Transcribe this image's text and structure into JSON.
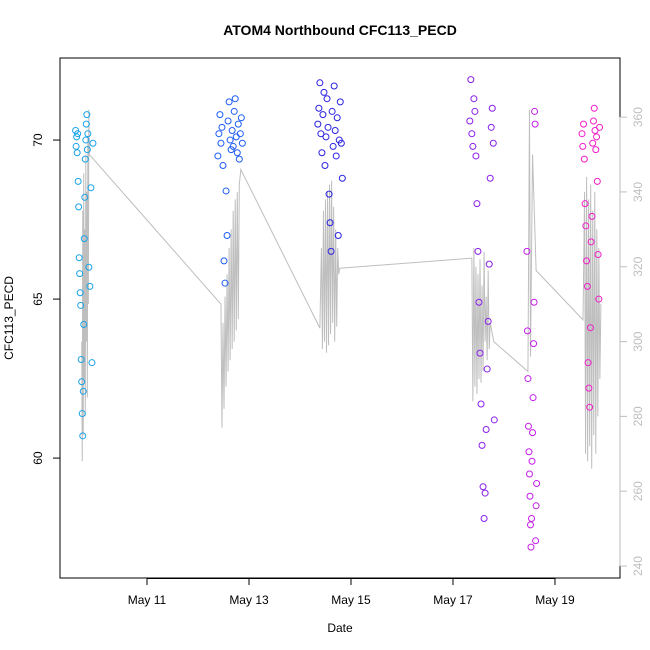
{
  "chart_data": {
    "type": "scatter",
    "title": "ATOM4 Northbound CFC113_PECD",
    "x_label": "Date",
    "y_label": "CFC113_PECD",
    "xlim": [
      9.294,
      20.275
    ],
    "xticks": [
      {
        "value": 11,
        "label": "May 11"
      },
      {
        "value": 13,
        "label": "May 13"
      },
      {
        "value": 15,
        "label": "May 15"
      },
      {
        "value": 17,
        "label": "May 17"
      },
      {
        "value": 19,
        "label": "May 19"
      }
    ],
    "ylim": [
      56.23,
      72.58
    ],
    "yticks": [
      60,
      65,
      70
    ],
    "y2lim": [
      236.8,
      375.8
    ],
    "y2ticks": [
      240,
      260,
      280,
      300,
      320,
      340,
      360
    ],
    "y2_color": "#bebebe",
    "series": [
      {
        "type": "line",
        "axis": "y2",
        "color": "#bebebe",
        "x": [
          9.72,
          9.73,
          9.74,
          9.75,
          9.76,
          9.77,
          9.78,
          9.79,
          9.8,
          9.81,
          9.82,
          9.83,
          9.84,
          9.85,
          9.86,
          9.87,
          12.45,
          12.47,
          12.49,
          12.51,
          12.53,
          12.55,
          12.57,
          12.59,
          12.61,
          12.63,
          12.65,
          12.67,
          12.69,
          12.71,
          12.73,
          12.75,
          12.77,
          12.79,
          12.81,
          12.84,
          14.39,
          14.42,
          14.44,
          14.46,
          14.48,
          14.5,
          14.52,
          14.54,
          14.56,
          14.58,
          14.6,
          14.62,
          14.64,
          14.66,
          14.68,
          14.7,
          14.72,
          14.74,
          14.76,
          14.78,
          17.37,
          17.39,
          17.41,
          17.43,
          17.45,
          17.47,
          17.49,
          17.51,
          17.53,
          17.55,
          17.57,
          17.59,
          17.61,
          17.63,
          17.65,
          17.67,
          17.69,
          17.71,
          17.73,
          17.8,
          18.47,
          18.5,
          18.52,
          18.56,
          18.63,
          19.55,
          19.58,
          19.6,
          19.62,
          19.64,
          19.66,
          19.68,
          19.7,
          19.72,
          19.74,
          19.76,
          19.78,
          19.8,
          19.82,
          19.84,
          19.86,
          19.88,
          19.9
        ],
        "values": [
          300,
          268,
          335,
          275,
          345,
          290,
          330,
          280,
          350,
          300,
          340,
          285,
          355,
          310,
          362,
          350,
          310,
          277,
          305,
          282,
          312,
          288,
          318,
          292,
          325,
          295,
          330,
          298,
          335,
          300,
          338,
          303,
          340,
          306,
          342,
          346,
          303.6,
          325,
          298,
          335,
          300,
          338,
          297,
          340,
          299,
          342,
          302,
          343,
          305,
          336,
          300,
          330,
          304,
          325,
          318,
          319.6,
          322.3,
          284,
          325,
          288,
          320,
          286,
          318,
          290,
          322,
          289,
          315,
          292,
          324,
          300,
          312,
          295,
          319,
          298,
          305,
          300,
          292,
          362,
          296,
          350,
          319,
          305.8,
          340,
          270,
          344,
          268,
          338,
          272,
          342,
          266,
          335,
          275,
          340,
          270,
          330,
          280,
          325,
          290,
          310
        ]
      },
      {
        "type": "scatter",
        "color": "#1aa3e8",
        "x": [
          9.6,
          9.61,
          9.62,
          9.63,
          9.64,
          9.65,
          9.66,
          9.67,
          9.68,
          9.69,
          9.7,
          9.71,
          9.72,
          9.73,
          9.74,
          9.75,
          9.76,
          9.77,
          9.78,
          9.79,
          9.8,
          9.81,
          9.82,
          9.83,
          9.84,
          9.86,
          9.88,
          9.9,
          9.92,
          9.94
        ],
        "values": [
          70.3,
          69.8,
          70.1,
          69.6,
          70.2,
          68.7,
          67.9,
          66.3,
          65.8,
          65.2,
          64.8,
          63.1,
          62.4,
          61.4,
          60.7,
          62.1,
          64.2,
          66.9,
          68.2,
          69.4,
          70.0,
          70.5,
          70.8,
          69.7,
          70.2,
          66.0,
          65.4,
          68.5,
          63.0,
          69.9
        ]
      },
      {
        "type": "scatter",
        "color": "#1e5cf5",
        "x": [
          12.39,
          12.41,
          12.43,
          12.45,
          12.47,
          12.49,
          12.51,
          12.53,
          12.55,
          12.57,
          12.59,
          12.61,
          12.63,
          12.65,
          12.67,
          12.69,
          12.71,
          12.73,
          12.75,
          12.77,
          12.79,
          12.81,
          12.83,
          12.85,
          12.87
        ],
        "values": [
          69.5,
          70.2,
          70.8,
          69.9,
          70.4,
          69.2,
          66.2,
          65.5,
          68.4,
          67.0,
          70.6,
          71.2,
          70.0,
          69.7,
          70.3,
          69.8,
          70.9,
          71.3,
          70.1,
          69.6,
          70.5,
          69.4,
          70.2,
          70.7,
          69.9
        ]
      },
      {
        "type": "scatter",
        "color": "#2a20e0",
        "x": [
          14.35,
          14.37,
          14.39,
          14.41,
          14.43,
          14.45,
          14.47,
          14.49,
          14.51,
          14.53,
          14.55,
          14.57,
          14.59,
          14.61,
          14.63,
          14.65,
          14.67,
          14.69,
          14.71,
          14.73,
          14.75,
          14.77,
          14.79,
          14.81,
          14.83
        ],
        "values": [
          70.5,
          71.0,
          71.8,
          70.2,
          69.6,
          70.8,
          71.5,
          69.2,
          70.1,
          71.3,
          70.4,
          68.3,
          67.4,
          66.5,
          70.9,
          69.8,
          71.7,
          70.3,
          69.5,
          70.7,
          67.0,
          70.0,
          71.2,
          69.9,
          68.8
        ]
      },
      {
        "type": "scatter",
        "color": "#8a1ee8",
        "x": [
          17.33,
          17.35,
          17.37,
          17.39,
          17.41,
          17.43,
          17.45,
          17.47,
          17.49,
          17.51,
          17.53,
          17.55,
          17.57,
          17.59,
          17.61,
          17.63,
          17.65,
          17.67,
          17.69,
          17.71,
          17.73,
          17.75,
          17.77,
          17.79,
          17.81
        ],
        "values": [
          70.6,
          71.9,
          70.2,
          69.8,
          71.3,
          70.9,
          69.5,
          68.0,
          66.5,
          64.9,
          63.3,
          61.7,
          60.4,
          59.1,
          58.1,
          58.9,
          60.9,
          62.8,
          64.3,
          66.1,
          68.8,
          70.4,
          71.0,
          69.9,
          61.2
        ]
      },
      {
        "type": "scatter",
        "color": "#c41ee8",
        "x": [
          18.45,
          18.46,
          18.47,
          18.48,
          18.49,
          18.5,
          18.51,
          18.52,
          18.53,
          18.54,
          18.55,
          18.56,
          18.57,
          18.58,
          18.59,
          18.6,
          18.61,
          18.62,
          18.63,
          18.64
        ],
        "values": [
          66.5,
          64.0,
          62.5,
          61.0,
          60.2,
          59.5,
          58.8,
          57.9,
          57.2,
          58.1,
          59.9,
          60.8,
          61.9,
          63.6,
          64.9,
          70.9,
          70.5,
          57.4,
          58.5,
          59.2
        ]
      },
      {
        "type": "scatter",
        "color": "#f01ec8",
        "x": [
          19.53,
          19.545,
          19.56,
          19.575,
          19.59,
          19.605,
          19.62,
          19.635,
          19.65,
          19.665,
          19.68,
          19.695,
          19.71,
          19.725,
          19.74,
          19.755,
          19.77,
          19.785,
          19.8,
          19.815,
          19.83,
          19.845,
          19.86,
          19.875
        ],
        "values": [
          70.2,
          69.8,
          70.5,
          69.4,
          68.0,
          67.3,
          66.2,
          65.4,
          63.0,
          62.2,
          61.6,
          64.1,
          66.8,
          67.6,
          69.9,
          70.6,
          71.0,
          70.3,
          69.7,
          70.1,
          68.7,
          66.4,
          65.0,
          70.4
        ]
      }
    ]
  }
}
